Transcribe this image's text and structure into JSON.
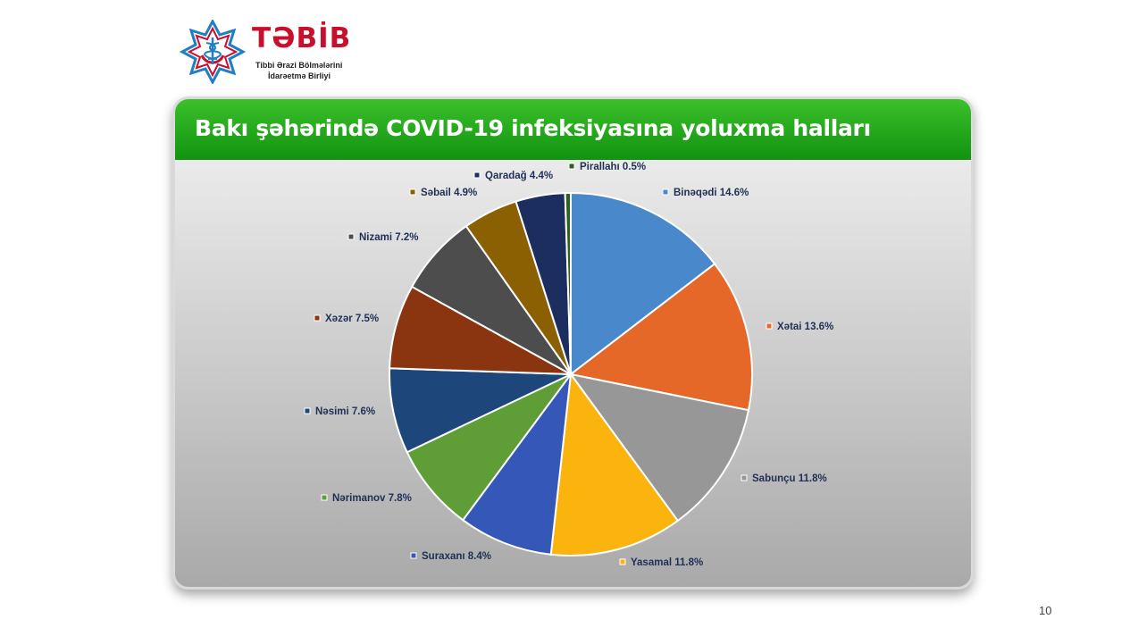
{
  "logo": {
    "brand": "TƏBİB",
    "line1": "Tibbi Ərazi Bölmələrini",
    "line2": "İdarəetmə Birliyi",
    "colors": {
      "brand": "#c8102e",
      "mark": "#1f7fc4"
    }
  },
  "panel": {
    "title": "Bakı şəhərində COVID-19 infeksiyasına yoluxma halları"
  },
  "page_number": "10",
  "chart_data": {
    "type": "pie",
    "title": "Bakı şəhərində COVID-19 infeksiyasına yoluxma halları",
    "unit": "%",
    "slices": [
      {
        "label": "Binəqədi",
        "value": 14.6,
        "text": "Binəqədi 14.6%",
        "color": "#4a88cc"
      },
      {
        "label": "Xətai",
        "value": 13.6,
        "text": "Xətai 13.6%",
        "color": "#e56828"
      },
      {
        "label": "Sabunçu",
        "value": 11.8,
        "text": "Sabunçu 11.8%",
        "color": "#979797"
      },
      {
        "label": "Yasamal",
        "value": 11.8,
        "text": "Yasamal 11.8%",
        "color": "#fbb40d"
      },
      {
        "label": "Suraxanı",
        "value": 8.4,
        "text": "Suraxanı 8.4%",
        "color": "#3558b8"
      },
      {
        "label": "Nərimanov",
        "value": 7.8,
        "text": "Nərimanov 7.8%",
        "color": "#5f9e37"
      },
      {
        "label": "Nəsimi",
        "value": 7.6,
        "text": "Nəsimi 7.6%",
        "color": "#1d477b"
      },
      {
        "label": "Xəzər",
        "value": 7.5,
        "text": "Xəzər 7.5%",
        "color": "#8a3510"
      },
      {
        "label": "Nizami",
        "value": 7.2,
        "text": "Nizami 7.2%",
        "color": "#4d4d4d"
      },
      {
        "label": "Səbail",
        "value": 4.9,
        "text": "Səbail 4.9%",
        "color": "#8a6003"
      },
      {
        "label": "Qaradağ",
        "value": 4.4,
        "text": "Qaradağ 4.4%",
        "color": "#1c2e60"
      },
      {
        "label": "Pirallahı",
        "value": 0.5,
        "text": "Pirallahı 0.5%",
        "color": "#2f5f1c"
      }
    ]
  }
}
